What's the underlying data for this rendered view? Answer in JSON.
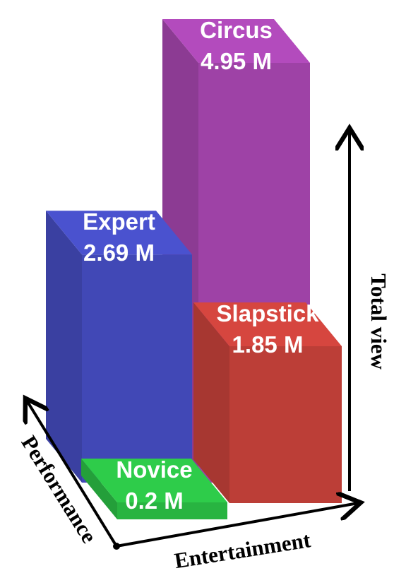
{
  "chart_data": {
    "type": "bar",
    "subtype": "3d-grid",
    "title": "",
    "x_axis_label": "Entertainment",
    "y_axis_label": "Performance",
    "z_axis_label": "Total view",
    "unit": "M",
    "grid": false,
    "legend": "none",
    "bars": [
      {
        "name": "Novice",
        "value": 0.2,
        "value_label": "0.2 M",
        "entertainment": "low",
        "performance": "low",
        "color": "#2ecc4a"
      },
      {
        "name": "Expert",
        "value": 2.69,
        "value_label": "2.69 M",
        "entertainment": "low",
        "performance": "high",
        "color": "#4a52cf"
      },
      {
        "name": "Circus",
        "value": 4.95,
        "value_label": "4.95 M",
        "entertainment": "high",
        "performance": "high",
        "color": "#b34bbd"
      },
      {
        "name": "Slapstick",
        "value": 1.85,
        "value_label": "1.85 M",
        "entertainment": "high",
        "performance": "low",
        "color": "#d6463f"
      }
    ]
  }
}
